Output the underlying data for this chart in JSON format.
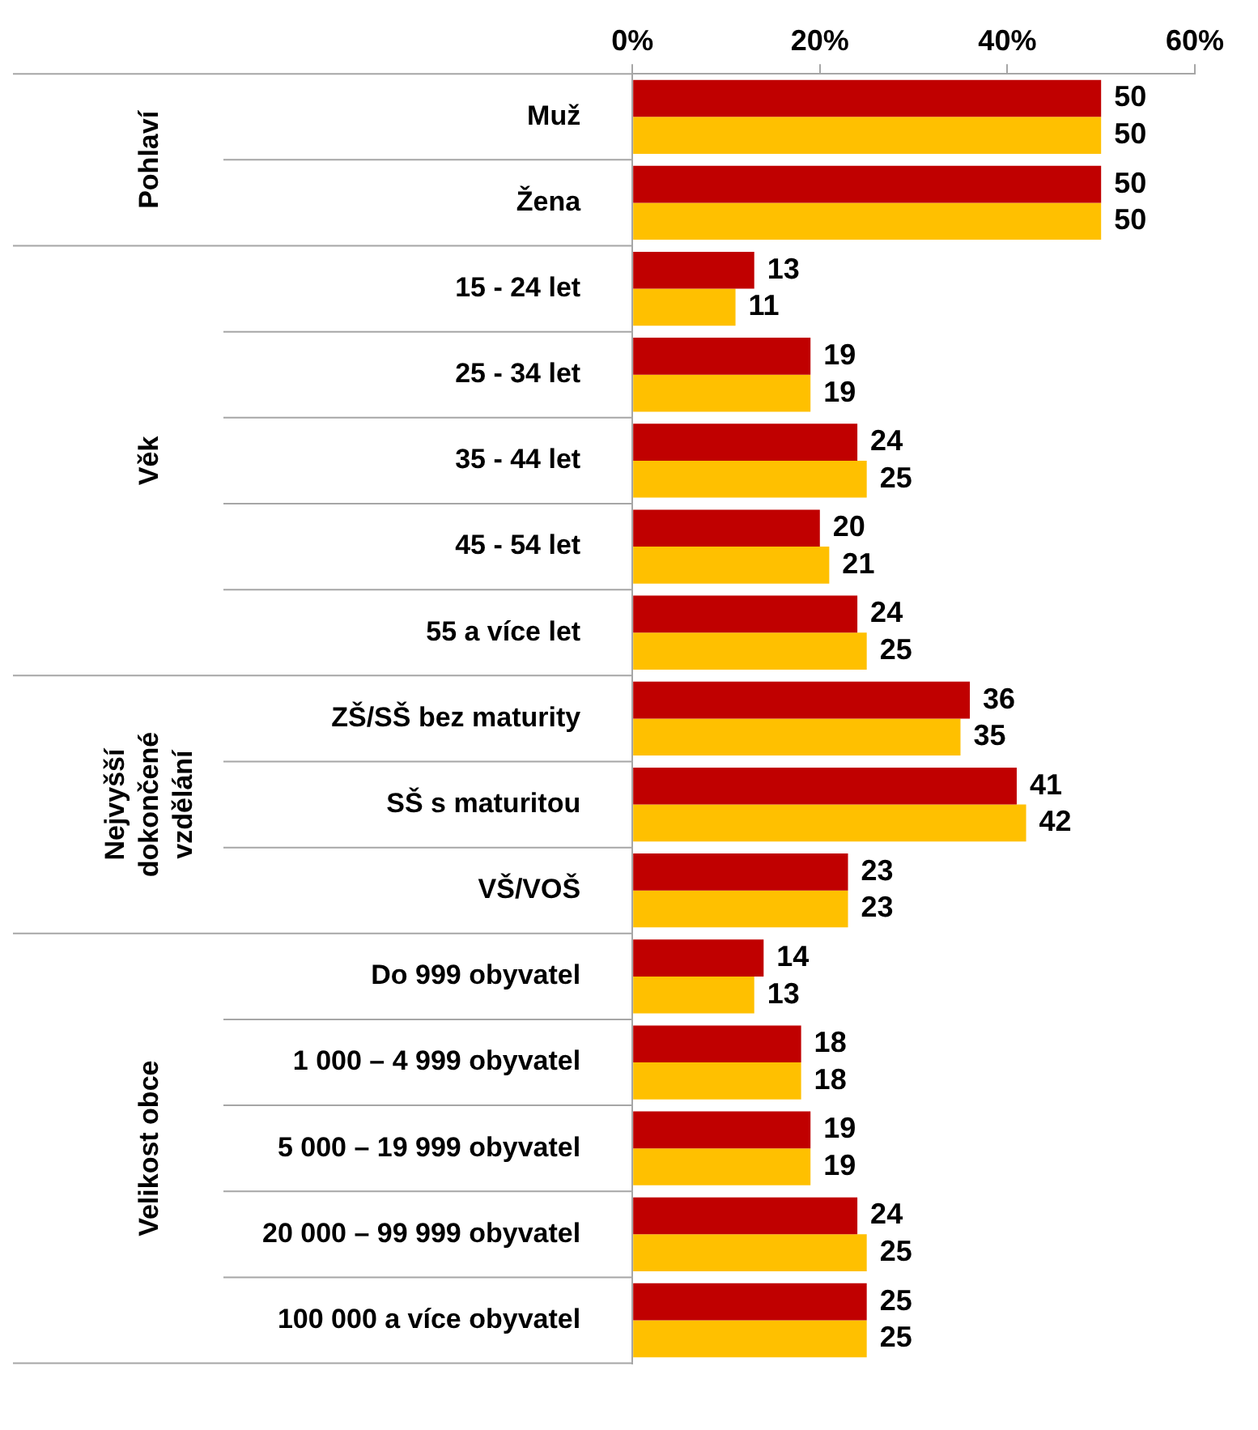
{
  "chart_data": {
    "type": "bar",
    "orientation": "horizontal",
    "categories": [
      "Muž",
      "Žena",
      "15 - 24 let",
      "25 - 34 let",
      "35 - 44 let",
      "45 - 54 let",
      "55 a více let",
      "ZŠ/SŠ bez maturity",
      "SŠ s maturitou",
      "VŠ/VOŠ",
      "Do 999 obyvatel",
      "1 000 – 4 999 obyvatel",
      "5 000 – 19 999 obyvatel",
      "20 000 – 99 999 obyvatel",
      "100 000 a více obyvatel"
    ],
    "series": [
      {
        "color": "#c00000",
        "values": [
          50,
          50,
          13,
          19,
          24,
          20,
          24,
          36,
          41,
          23,
          14,
          18,
          19,
          24,
          25
        ]
      },
      {
        "color": "#ffc000",
        "values": [
          50,
          50,
          11,
          19,
          25,
          21,
          25,
          35,
          42,
          23,
          13,
          18,
          19,
          25,
          25
        ]
      }
    ],
    "xlim": [
      0,
      60
    ],
    "xticks": [
      {
        "value": 0,
        "label": "0%"
      },
      {
        "value": 20,
        "label": "20%"
      },
      {
        "value": 40,
        "label": "40%"
      },
      {
        "value": 60,
        "label": "60%"
      }
    ],
    "data_labels": true,
    "legend": false,
    "grid": false,
    "annotations": [
      "Pohlaví",
      "Věk",
      "Nejvyšší dokončené vzdělání",
      "Velikost obce"
    ]
  }
}
